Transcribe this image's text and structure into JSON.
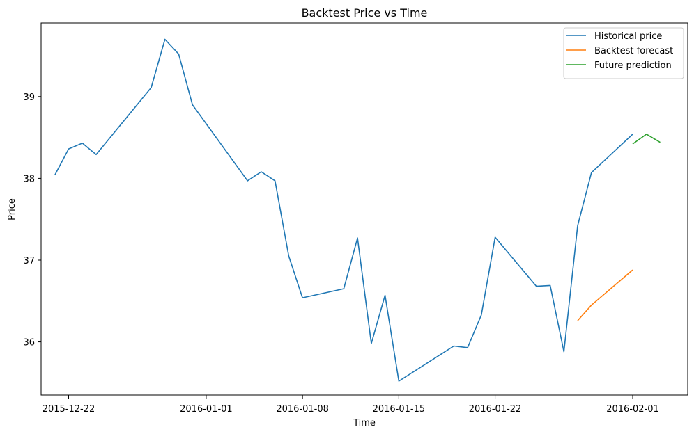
{
  "chart_data": {
    "type": "line",
    "title": "Backtest Price vs Time",
    "xlabel": "Time",
    "ylabel": "Price",
    "xlim": [
      "2015-12-20",
      "2016-02-05"
    ],
    "ylim": [
      35.35,
      39.9
    ],
    "x_ticks": [
      "2015-12-22",
      "2016-01-01",
      "2016-01-08",
      "2016-01-15",
      "2016-01-22",
      "2016-02-01"
    ],
    "y_ticks": [
      36,
      37,
      38,
      39
    ],
    "legend": "top-right",
    "grid": false,
    "series": [
      {
        "name": "Historical price",
        "color": "#1f77b4",
        "x": [
          "2015-12-21",
          "2015-12-22",
          "2015-12-23",
          "2015-12-24",
          "2015-12-28",
          "2015-12-29",
          "2015-12-30",
          "2015-12-31",
          "2016-01-04",
          "2016-01-05",
          "2016-01-06",
          "2016-01-07",
          "2016-01-08",
          "2016-01-11",
          "2016-01-12",
          "2016-01-13",
          "2016-01-14",
          "2016-01-15",
          "2016-01-19",
          "2016-01-20",
          "2016-01-21",
          "2016-01-22",
          "2016-01-25",
          "2016-01-26",
          "2016-01-27",
          "2016-01-28",
          "2016-01-29",
          "2016-02-01"
        ],
        "y": [
          38.04,
          38.36,
          38.43,
          38.29,
          39.11,
          39.7,
          39.52,
          38.9,
          37.97,
          38.08,
          37.97,
          37.05,
          36.54,
          36.65,
          37.27,
          35.98,
          36.57,
          35.52,
          35.95,
          35.93,
          36.33,
          37.28,
          36.68,
          36.69,
          35.88,
          37.42,
          38.07,
          38.54
        ]
      },
      {
        "name": "Backtest forecast",
        "color": "#ff7f0e",
        "x": [
          "2016-01-28",
          "2016-01-29",
          "2016-02-01"
        ],
        "y": [
          36.26,
          36.45,
          36.88
        ]
      },
      {
        "name": "Future prediction",
        "color": "#2ca02c",
        "x": [
          "2016-02-01",
          "2016-02-02",
          "2016-02-03"
        ],
        "y": [
          38.42,
          38.54,
          38.44
        ]
      }
    ]
  }
}
